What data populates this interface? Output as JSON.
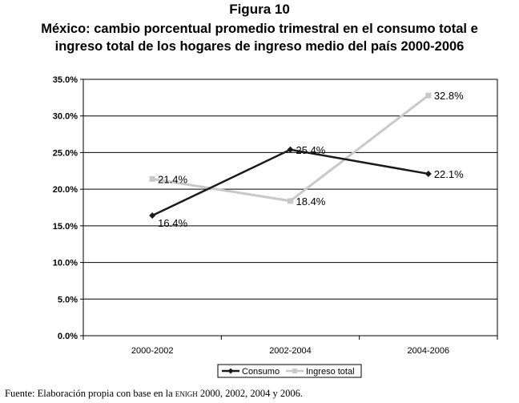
{
  "figure_label": "Figura 10",
  "title_line1": "México: cambio porcentual promedio trimestral en el consumo total e",
  "title_line2": "ingreso total de los hogares de ingreso medio del país 2000-2006",
  "source": {
    "prefix": "Fuente: Elaboración propia con base en la ",
    "acronym": "enigh",
    "suffix": " 2000, 2002, 2004 y 2006."
  },
  "chart_data": {
    "type": "line",
    "categories": [
      "2000-2002",
      "2002-2004",
      "2004-2006"
    ],
    "series": [
      {
        "name": "Consumo",
        "values": [
          16.4,
          25.4,
          22.1
        ],
        "labels": [
          "16.4%",
          "25.4%",
          "22.1%"
        ],
        "color": "#1a1a1a",
        "marker": "diamond"
      },
      {
        "name": "Ingreso total",
        "values": [
          21.4,
          18.4,
          32.8
        ],
        "labels": [
          "21.4%",
          "18.4%",
          "32.8%"
        ],
        "color": "#c8c8c8",
        "marker": "square"
      }
    ],
    "ylim": [
      0,
      35
    ],
    "yticks": [
      "0.0%",
      "5.0%",
      "10.0%",
      "15.0%",
      "20.0%",
      "25.0%",
      "30.0%",
      "35.0%"
    ],
    "grid": true,
    "legend_position": "bottom"
  }
}
